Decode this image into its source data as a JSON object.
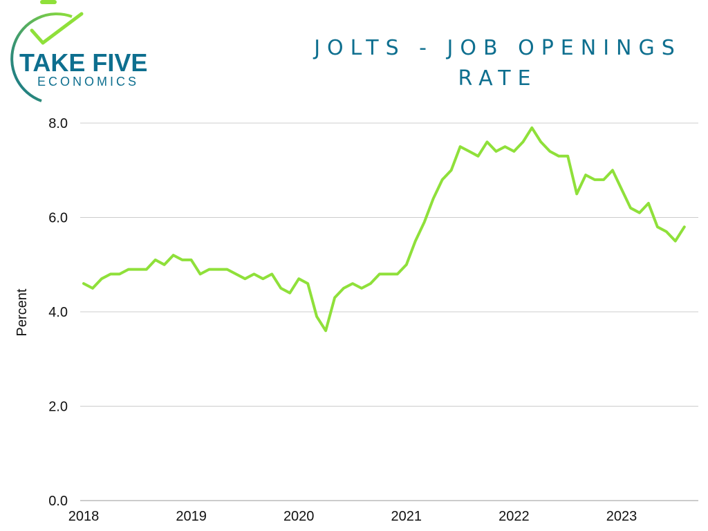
{
  "logo": {
    "main": "TAKE FIVE",
    "sub": "ECONOMICS"
  },
  "colors": {
    "brand": "#0e6f8f",
    "line": "#8fe03a",
    "grid": "#cccccc"
  },
  "chart_data": {
    "type": "line",
    "title_lines": [
      "JOLTS - JOB OPENINGS",
      "RATE"
    ],
    "xlabel": "",
    "ylabel": "Percent",
    "ylim": [
      0,
      8
    ],
    "yticks": [
      "0.0",
      "2.0",
      "4.0",
      "6.0",
      "8.0"
    ],
    "xticks": [
      "2018",
      "2019",
      "2020",
      "2021",
      "2022",
      "2023"
    ],
    "x_start": "2018-01",
    "grid": "horizontal",
    "legend": "none",
    "series": [
      {
        "values": [
          4.6,
          4.5,
          4.7,
          4.8,
          4.8,
          4.9,
          4.9,
          4.9,
          5.1,
          5.0,
          5.2,
          5.1,
          5.1,
          4.8,
          4.9,
          4.9,
          4.9,
          4.8,
          4.7,
          4.8,
          4.7,
          4.8,
          4.5,
          4.4,
          4.7,
          4.6,
          3.9,
          3.6,
          4.3,
          4.5,
          4.6,
          4.5,
          4.6,
          4.8,
          4.8,
          4.8,
          5.0,
          5.5,
          5.9,
          6.4,
          6.8,
          7.0,
          7.5,
          7.4,
          7.3,
          7.6,
          7.4,
          7.5,
          7.4,
          7.6,
          7.9,
          7.6,
          7.4,
          7.3,
          7.3,
          6.5,
          6.9,
          6.8,
          6.8,
          7.0,
          6.6,
          6.2,
          6.1,
          6.3,
          5.8,
          5.7,
          5.5,
          5.8
        ]
      }
    ]
  }
}
